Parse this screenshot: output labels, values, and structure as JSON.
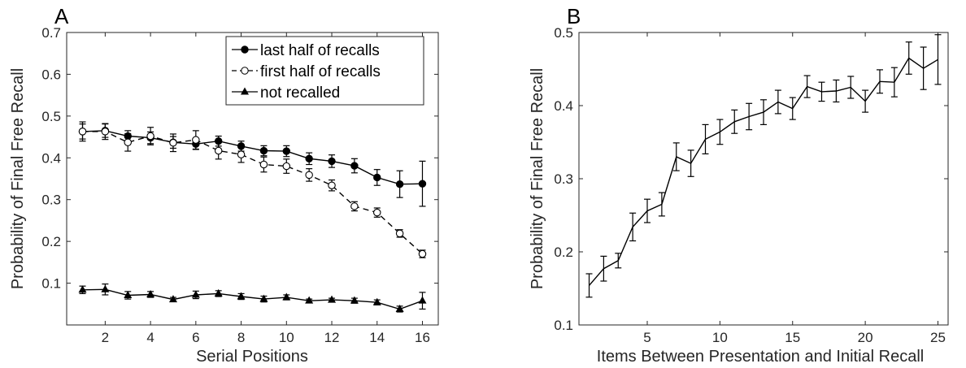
{
  "chart_data": [
    {
      "panel": "A",
      "type": "line",
      "xlabel": "Serial Positions",
      "ylabel": "Probability of Final Free Recall",
      "xlim": [
        0.3,
        16.7
      ],
      "ylim": [
        0,
        0.7
      ],
      "xticks": [
        2,
        4,
        6,
        8,
        10,
        12,
        14,
        16
      ],
      "yticks": [
        0.1,
        0.2,
        0.3,
        0.4,
        0.5,
        0.6,
        0.7
      ],
      "ytick_labels": [
        "0.1",
        "0.2",
        "0.3",
        "0.4",
        "0.5",
        "0.6",
        "0.7"
      ],
      "legend_position": "top-right",
      "x": [
        1,
        2,
        3,
        4,
        5,
        6,
        7,
        8,
        9,
        10,
        11,
        12,
        13,
        14,
        15,
        16
      ],
      "series": [
        {
          "name": "last half of recalls",
          "marker": "filled-circle",
          "dash": "solid",
          "values": [
            0.463,
            0.465,
            0.452,
            0.448,
            0.437,
            0.433,
            0.44,
            0.428,
            0.417,
            0.416,
            0.398,
            0.392,
            0.381,
            0.353,
            0.337,
            0.338
          ],
          "err": [
            0.018,
            0.016,
            0.013,
            0.014,
            0.014,
            0.013,
            0.012,
            0.012,
            0.012,
            0.013,
            0.014,
            0.015,
            0.017,
            0.019,
            0.032,
            0.054
          ]
        },
        {
          "name": "first half of recalls",
          "marker": "open-circle",
          "dash": "dashed",
          "values": [
            0.463,
            0.463,
            0.437,
            0.452,
            0.436,
            0.443,
            0.417,
            0.408,
            0.384,
            0.38,
            0.359,
            0.334,
            0.284,
            0.269,
            0.219,
            0.17
          ],
          "err": [
            0.023,
            0.019,
            0.021,
            0.021,
            0.021,
            0.022,
            0.02,
            0.019,
            0.018,
            0.017,
            0.015,
            0.013,
            0.011,
            0.011,
            0.009,
            0.009
          ]
        },
        {
          "name": "not recalled",
          "marker": "filled-triangle",
          "dash": "solid",
          "values": [
            0.084,
            0.085,
            0.071,
            0.073,
            0.061,
            0.072,
            0.075,
            0.068,
            0.062,
            0.066,
            0.058,
            0.06,
            0.058,
            0.054,
            0.038,
            0.058
          ],
          "err": [
            0.009,
            0.013,
            0.009,
            0.007,
            0.005,
            0.009,
            0.007,
            0.007,
            0.007,
            0.006,
            0.004,
            0.004,
            0.006,
            0.006,
            0.007,
            0.02
          ]
        }
      ]
    },
    {
      "panel": "B",
      "type": "line",
      "xlabel": "Items Between Presentation and Initial Recall",
      "ylabel": "Probability of Final Free Recall",
      "xlim": [
        0.3,
        25.7
      ],
      "ylim": [
        0.1,
        0.5
      ],
      "xticks": [
        5,
        10,
        15,
        20,
        25
      ],
      "yticks": [
        0.1,
        0.2,
        0.3,
        0.4,
        0.5
      ],
      "ytick_labels": [
        "0.1",
        "0.2",
        "0.3",
        "0.4",
        "0.5"
      ],
      "x": [
        1,
        2,
        3,
        4,
        5,
        6,
        7,
        8,
        9,
        10,
        11,
        12,
        13,
        14,
        15,
        16,
        17,
        18,
        19,
        20,
        21,
        22,
        23,
        24,
        25
      ],
      "series": [
        {
          "marker": "none",
          "dash": "solid",
          "values": [
            0.154,
            0.177,
            0.188,
            0.234,
            0.256,
            0.265,
            0.33,
            0.321,
            0.354,
            0.364,
            0.378,
            0.385,
            0.391,
            0.405,
            0.396,
            0.426,
            0.419,
            0.42,
            0.425,
            0.406,
            0.433,
            0.432,
            0.465,
            0.451,
            0.463
          ],
          "err": [
            0.016,
            0.017,
            0.01,
            0.019,
            0.016,
            0.016,
            0.019,
            0.018,
            0.02,
            0.017,
            0.016,
            0.018,
            0.017,
            0.016,
            0.015,
            0.015,
            0.013,
            0.015,
            0.015,
            0.015,
            0.016,
            0.02,
            0.022,
            0.029,
            0.034
          ]
        }
      ]
    }
  ]
}
